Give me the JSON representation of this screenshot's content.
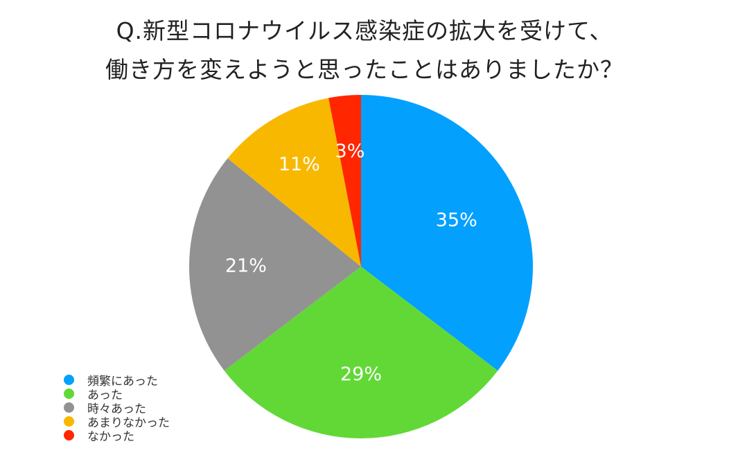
{
  "title": {
    "line1": "Q.新型コロナウイルス感染症の拡大を受けて、",
    "line2": "働き方を変えようと思ったことはありましたか？"
  },
  "chart_data": {
    "type": "pie",
    "title": "Q.新型コロナウイルス感染症の拡大を受けて、働き方を変えようと思ったことはありましたか？",
    "categories": [
      "頻繁にあった",
      "あった",
      "時々あった",
      "あまりなかった",
      "なかった"
    ],
    "values": [
      35,
      29,
      21,
      11,
      3
    ],
    "labels": [
      "35%",
      "29%",
      "21%",
      "11%",
      "3%"
    ],
    "colors": [
      "#03a0fe",
      "#62d837",
      "#929292",
      "#f8b800",
      "#ff2600"
    ],
    "start_angle": "12 o'clock, clockwise",
    "legend_position": "bottom-left"
  },
  "legend": {
    "items": [
      {
        "label": "頻繁にあった",
        "color": "#03a0fe"
      },
      {
        "label": "あった",
        "color": "#62d837"
      },
      {
        "label": "時々あった",
        "color": "#929292"
      },
      {
        "label": "あまりなかった",
        "color": "#f8b800"
      },
      {
        "label": "なかった",
        "color": "#ff2600"
      }
    ]
  }
}
